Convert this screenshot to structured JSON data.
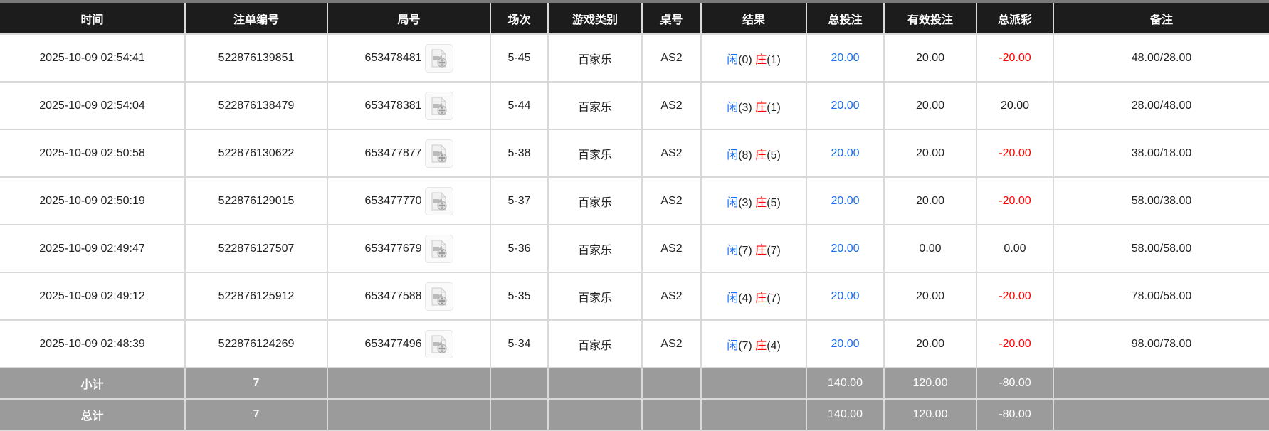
{
  "headers": [
    "时间",
    "注单编号",
    "局号",
    "场次",
    "游戏类别",
    "桌号",
    "结果",
    "总投注",
    "有效投注",
    "总派彩",
    "备注"
  ],
  "result_labels": {
    "player": "闲",
    "banker": "庄"
  },
  "colors": {
    "player": "#1a6cf0",
    "banker": "#ff0000",
    "negative": "#ff0000",
    "bet": "#1a6cf0",
    "header_bg": "#1c1c1c",
    "summary_bg": "#9b9b9b"
  },
  "rows": [
    {
      "time": "2025-10-09 02:54:41",
      "bet_id": "522876139851",
      "round": "653478481",
      "shoe": "5-45",
      "game": "百家乐",
      "table": "AS2",
      "player": "(0)",
      "banker": "(1)",
      "total_bet": "20.00",
      "valid_bet": "20.00",
      "payout": "-20.00",
      "payout_negative": true,
      "remark": "48.00/28.00"
    },
    {
      "time": "2025-10-09 02:54:04",
      "bet_id": "522876138479",
      "round": "653478381",
      "shoe": "5-44",
      "game": "百家乐",
      "table": "AS2",
      "player": "(3)",
      "banker": "(1)",
      "total_bet": "20.00",
      "valid_bet": "20.00",
      "payout": "20.00",
      "payout_negative": false,
      "remark": "28.00/48.00"
    },
    {
      "time": "2025-10-09 02:50:58",
      "bet_id": "522876130622",
      "round": "653477877",
      "shoe": "5-38",
      "game": "百家乐",
      "table": "AS2",
      "player": "(8)",
      "banker": "(5)",
      "total_bet": "20.00",
      "valid_bet": "20.00",
      "payout": "-20.00",
      "payout_negative": true,
      "remark": "38.00/18.00"
    },
    {
      "time": "2025-10-09 02:50:19",
      "bet_id": "522876129015",
      "round": "653477770",
      "shoe": "5-37",
      "game": "百家乐",
      "table": "AS2",
      "player": "(3)",
      "banker": "(5)",
      "total_bet": "20.00",
      "valid_bet": "20.00",
      "payout": "-20.00",
      "payout_negative": true,
      "remark": "58.00/38.00"
    },
    {
      "time": "2025-10-09 02:49:47",
      "bet_id": "522876127507",
      "round": "653477679",
      "shoe": "5-36",
      "game": "百家乐",
      "table": "AS2",
      "player": "(7)",
      "banker": "(7)",
      "total_bet": "20.00",
      "valid_bet": "0.00",
      "payout": "0.00",
      "payout_negative": false,
      "remark": "58.00/58.00"
    },
    {
      "time": "2025-10-09 02:49:12",
      "bet_id": "522876125912",
      "round": "653477588",
      "shoe": "5-35",
      "game": "百家乐",
      "table": "AS2",
      "player": "(4)",
      "banker": "(7)",
      "total_bet": "20.00",
      "valid_bet": "20.00",
      "payout": "-20.00",
      "payout_negative": true,
      "remark": "78.00/58.00"
    },
    {
      "time": "2025-10-09 02:48:39",
      "bet_id": "522876124269",
      "round": "653477496",
      "shoe": "5-34",
      "game": "百家乐",
      "table": "AS2",
      "player": "(7)",
      "banker": "(4)",
      "total_bet": "20.00",
      "valid_bet": "20.00",
      "payout": "-20.00",
      "payout_negative": true,
      "remark": "98.00/78.00"
    }
  ],
  "subtotal": {
    "label": "小计",
    "count": "7",
    "total_bet": "140.00",
    "valid_bet": "120.00",
    "payout": "-80.00"
  },
  "total": {
    "label": "总计",
    "count": "7",
    "total_bet": "140.00",
    "valid_bet": "120.00",
    "payout": "-80.00"
  },
  "icons": {
    "replay": "video-file-icon"
  }
}
